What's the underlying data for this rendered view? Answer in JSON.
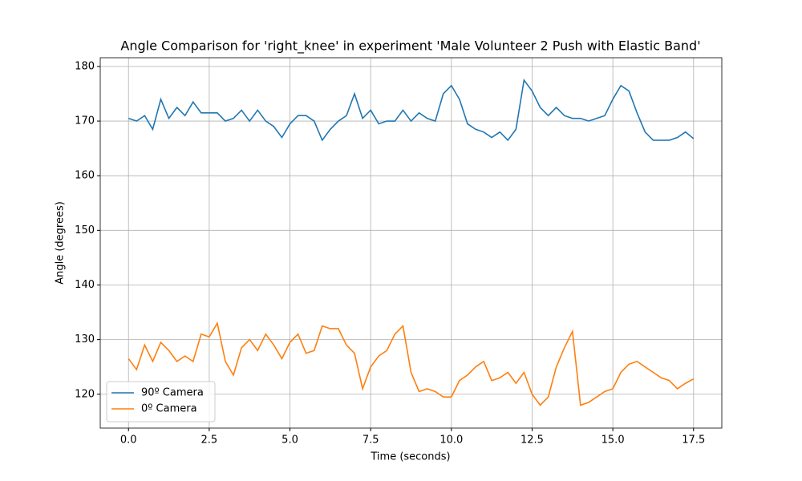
{
  "chart_data": {
    "type": "line",
    "title": "Angle Comparison for 'right_knee' in experiment 'Male Volunteer 2 Push with Elastic Band'",
    "x_label": "Time (seconds)",
    "y_label": "Angle (degrees)",
    "x": [
      0,
      0.25,
      0.5,
      0.75,
      1,
      1.25,
      1.5,
      1.75,
      2,
      2.25,
      2.5,
      2.75,
      3,
      3.25,
      3.5,
      3.75,
      4,
      4.25,
      4.5,
      4.75,
      5,
      5.25,
      5.5,
      5.75,
      6,
      6.25,
      6.5,
      6.75,
      7,
      7.25,
      7.5,
      7.75,
      8,
      8.25,
      8.5,
      8.75,
      9,
      9.25,
      9.5,
      9.75,
      10,
      10.25,
      10.5,
      10.75,
      11,
      11.25,
      11.5,
      11.75,
      12,
      12.25,
      12.5,
      12.75,
      13,
      13.25,
      13.5,
      13.75,
      14,
      14.25,
      14.5,
      14.75,
      15,
      15.25,
      15.5,
      15.75,
      16,
      16.25,
      16.5,
      16.75,
      17,
      17.25,
      17.5
    ],
    "series": [
      {
        "name": "90º Camera",
        "color": "#1f77b4",
        "values": [
          170.5,
          170,
          171,
          168.5,
          174,
          170.5,
          172.5,
          171,
          173.5,
          171.5,
          171.5,
          171.5,
          170,
          170.5,
          172,
          170,
          172,
          170,
          169,
          167,
          169.5,
          171,
          171,
          170,
          166.5,
          168.5,
          170,
          171,
          175,
          170.5,
          172,
          169.5,
          170,
          170,
          172,
          170,
          171.5,
          170.5,
          170,
          175,
          176.5,
          174,
          169.5,
          168.5,
          168,
          167,
          168,
          166.5,
          168.5,
          177.5,
          175.5,
          172.5,
          171,
          172.5,
          171,
          170.5,
          170.5,
          170,
          170.5,
          171,
          174,
          176.5,
          175.5,
          171.5,
          168,
          166.5,
          166.5,
          166.5,
          167,
          168,
          166.8
        ]
      },
      {
        "name": "0º Camera",
        "color": "#ff7f0e",
        "values": [
          126.5,
          124.5,
          129,
          126,
          129.5,
          128,
          126,
          127,
          126,
          131,
          130.5,
          133,
          126,
          123.5,
          128.5,
          130,
          128,
          131,
          129,
          126.5,
          129.5,
          131,
          127.5,
          128,
          132.5,
          132,
          132,
          129,
          127.5,
          121,
          125,
          127,
          128,
          131,
          132.5,
          124,
          120.5,
          121,
          120.5,
          119.5,
          119.5,
          122.5,
          123.5,
          125,
          126,
          122.5,
          123,
          124,
          122,
          124,
          120,
          118,
          119.5,
          125,
          128.5,
          131.5,
          118,
          118.5,
          119.5,
          120.5,
          121,
          124,
          125.5,
          126,
          125,
          124,
          123,
          122.5,
          121,
          122,
          122.8
        ]
      }
    ],
    "xlim": [
      -0.875,
      18.375
    ],
    "ylim": [
      113.8,
      181.6
    ],
    "xticks": [
      {
        "value": 0,
        "label": "0.0"
      },
      2.5,
      {
        "value": 5,
        "label": "5.0"
      },
      7.5,
      {
        "value": 10,
        "label": "10.0"
      },
      12.5,
      {
        "value": 15,
        "label": "15.0"
      },
      17.5
    ],
    "yticks": [
      120,
      130,
      140,
      150,
      160,
      170,
      180
    ],
    "grid": true,
    "legend": "lower left"
  }
}
